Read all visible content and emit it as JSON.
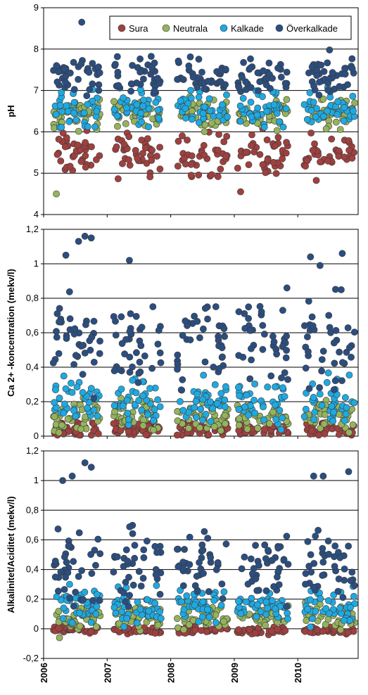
{
  "chart_data": [
    {
      "type": "scatter",
      "ylabel": "pH",
      "ylim": [
        4,
        9
      ],
      "yticks": [
        "4",
        "5",
        "6",
        "7",
        "8",
        "9"
      ],
      "grid": "horizontal",
      "legend": "top-right",
      "series": [
        {
          "name": "Sura",
          "color": "#a0403e",
          "center": 5.45,
          "spread": 0.45
        },
        {
          "name": "Neutrala",
          "color": "#95b35c",
          "center": 6.45,
          "spread": 0.3
        },
        {
          "name": "Kalkade",
          "color": "#1fa9e1",
          "center": 6.55,
          "spread": 0.35
        },
        {
          "name": "Överkalkade",
          "color": "#2b4e80",
          "center": 7.3,
          "spread": 0.4
        }
      ],
      "outliers": [
        {
          "series": "Överkalkade",
          "x": 2006.6,
          "y": 8.65
        },
        {
          "series": "Överkalkade",
          "x": 2010.5,
          "y": 7.98
        },
        {
          "series": "Neutrala",
          "x": 2006.2,
          "y": 4.5
        },
        {
          "series": "Sura",
          "x": 2009.1,
          "y": 4.55
        }
      ]
    },
    {
      "type": "scatter",
      "ylabel": "Ca 2+ -koncentration (mekv/l)",
      "ylim": [
        0,
        1.2
      ],
      "yticks": [
        "0",
        "0,2",
        "0,4",
        "0,6",
        "0,8",
        "1",
        "1,2"
      ],
      "grid": "horizontal",
      "series": [
        {
          "name": "Sura",
          "color": "#a0403e",
          "center": 0.04,
          "spread": 0.04
        },
        {
          "name": "Neutrala",
          "color": "#95b35c",
          "center": 0.12,
          "spread": 0.08
        },
        {
          "name": "Kalkade",
          "color": "#1fa9e1",
          "center": 0.2,
          "spread": 0.12
        },
        {
          "name": "Överkalkade",
          "color": "#2b4e80",
          "center": 0.55,
          "spread": 0.22
        }
      ],
      "outliers": [
        {
          "series": "Överkalkade",
          "x": 2006.65,
          "y": 1.16
        },
        {
          "series": "Överkalkade",
          "x": 2006.55,
          "y": 1.13
        },
        {
          "series": "Överkalkade",
          "x": 2006.75,
          "y": 1.15
        },
        {
          "series": "Överkalkade",
          "x": 2006.35,
          "y": 1.05
        },
        {
          "series": "Överkalkade",
          "x": 2007.35,
          "y": 1.02
        },
        {
          "series": "Överkalkade",
          "x": 2010.7,
          "y": 1.06
        },
        {
          "series": "Överkalkade",
          "x": 2010.2,
          "y": 1.04
        },
        {
          "series": "Överkalkade",
          "x": 2010.35,
          "y": 0.99
        }
      ]
    },
    {
      "type": "scatter",
      "ylabel": "Alkalinitet/Aciditet (mekv/l)",
      "ylim": [
        -0.2,
        1.2
      ],
      "yticks": [
        "-0,2",
        "0",
        "0,2",
        "0,4",
        "0,6",
        "0,8",
        "1",
        "1,2"
      ],
      "grid": "horizontal",
      "series": [
        {
          "name": "Sura",
          "color": "#a0403e",
          "center": -0.01,
          "spread": 0.02
        },
        {
          "name": "Neutrala",
          "color": "#95b35c",
          "center": 0.08,
          "spread": 0.07
        },
        {
          "name": "Kalkade",
          "color": "#1fa9e1",
          "center": 0.15,
          "spread": 0.1
        },
        {
          "name": "Överkalkade",
          "color": "#2b4e80",
          "center": 0.42,
          "spread": 0.22
        }
      ],
      "outliers": [
        {
          "series": "Överkalkade",
          "x": 2006.65,
          "y": 1.12
        },
        {
          "series": "Överkalkade",
          "x": 2006.75,
          "y": 1.09
        },
        {
          "series": "Överkalkade",
          "x": 2006.45,
          "y": 1.03
        },
        {
          "series": "Överkalkade",
          "x": 2006.3,
          "y": 1.0
        },
        {
          "series": "Överkalkade",
          "x": 2010.8,
          "y": 1.06
        },
        {
          "series": "Överkalkade",
          "x": 2010.25,
          "y": 1.03
        },
        {
          "series": "Överkalkade",
          "x": 2010.4,
          "y": 1.03
        },
        {
          "series": "Neutrala",
          "x": 2006.25,
          "y": -0.06
        }
      ]
    }
  ],
  "x_axis": {
    "xlim": [
      2006,
      2010.95
    ],
    "tick_labels": [
      "2006",
      "2007",
      "2008",
      "2009",
      "2010"
    ],
    "tick_values": [
      2006,
      2007,
      2008,
      2009,
      2010
    ],
    "season_clusters": [
      [
        2006.15,
        2006.9
      ],
      [
        2007.1,
        2007.85
      ],
      [
        2008.1,
        2008.9
      ],
      [
        2009.05,
        2009.85
      ],
      [
        2010.1,
        2010.9
      ]
    ]
  },
  "legend": {
    "entries": [
      "Sura",
      "Neutrala",
      "Kalkade",
      "Överkalkade"
    ]
  }
}
